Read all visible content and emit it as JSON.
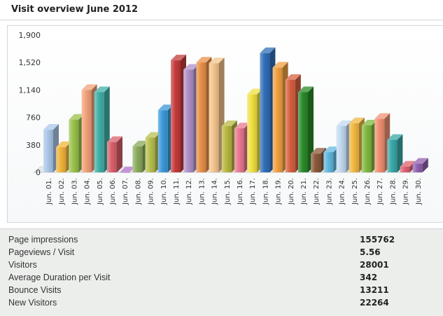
{
  "title": "Visit overview June 2012",
  "chart_data": {
    "type": "bar",
    "title": "",
    "xlabel": "",
    "ylabel": "",
    "ylim": [
      0,
      1900
    ],
    "yticks": [
      "1,900",
      "1,520",
      "1,140",
      "760",
      "380",
      "0"
    ],
    "ytick_values": [
      1900,
      1520,
      1140,
      760,
      380,
      0
    ],
    "categories": [
      "Jun. 01.",
      "Jun. 02.",
      "Jun. 03.",
      "Jun. 04.",
      "Jun. 05.",
      "Jun. 06.",
      "Jun. 07.",
      "Jun. 08.",
      "Jun. 09.",
      "Jun. 10.",
      "Jun. 11.",
      "Jun. 12.",
      "Jun. 13.",
      "Jun. 14.",
      "Jun. 15.",
      "Jun. 16.",
      "Jun. 17.",
      "Jun. 18.",
      "Jun. 19.",
      "Jun. 20.",
      "Jun. 21.",
      "Jun. 22.",
      "Jun. 23.",
      "Jun. 24.",
      "Jun. 25.",
      "Jun. 26.",
      "Jun. 27.",
      "Jun. 28.",
      "Jun. 29.",
      "Jun. 30."
    ],
    "values": [
      590,
      350,
      730,
      1140,
      1110,
      420,
      0,
      360,
      480,
      860,
      1550,
      1420,
      1520,
      1510,
      640,
      610,
      1080,
      1650,
      1450,
      1280,
      1110,
      260,
      280,
      640,
      680,
      650,
      740,
      450,
      80,
      120
    ],
    "colors": [
      "#a9c6e8",
      "#f0b53a",
      "#98c24a",
      "#f2a078",
      "#40b0a8",
      "#d8606a",
      "#b070c8",
      "#88aa5a",
      "#b8c050",
      "#3a98d8",
      "#c43a3a",
      "#b090c8",
      "#e89048",
      "#f4c48c",
      "#b8b840",
      "#e87890",
      "#f0e040",
      "#2f6fb8",
      "#f0a040",
      "#d86040",
      "#2a8a2a",
      "#8a5a3a",
      "#60b8e0",
      "#c0d8f0",
      "#f0b840",
      "#80b840",
      "#f09070",
      "#3aa8a8",
      "#e06070",
      "#9060b0"
    ],
    "grid": false
  },
  "stats": [
    {
      "label": "Page impressions",
      "value": "155762"
    },
    {
      "label": "Pageviews / Visit",
      "value": "5.56"
    },
    {
      "label": "Visitors",
      "value": "28001"
    },
    {
      "label": "Average Duration per Visit",
      "value": "342"
    },
    {
      "label": "Bounce Visits",
      "value": "13211"
    },
    {
      "label": "New Visitors",
      "value": "22264"
    }
  ]
}
